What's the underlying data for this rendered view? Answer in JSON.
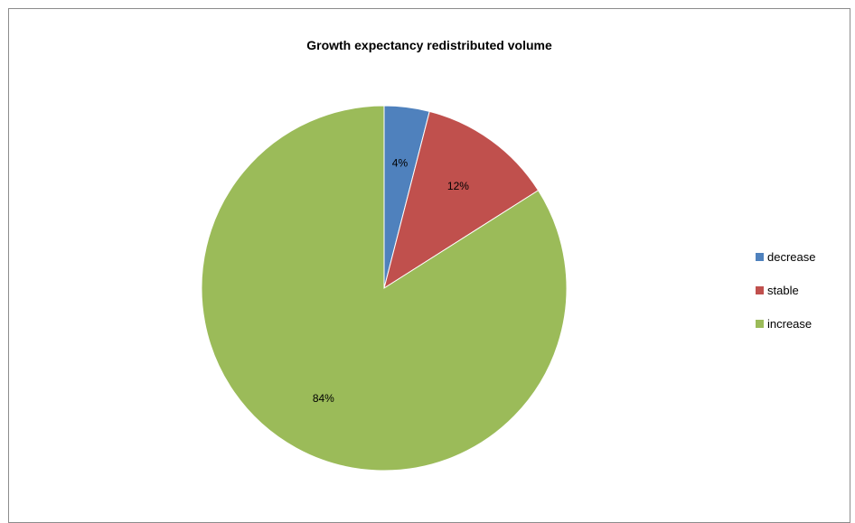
{
  "chart_data": {
    "type": "pie",
    "title": "Growth expectancy redistributed volume",
    "categories": [
      "decrease",
      "stable",
      "increase"
    ],
    "values": [
      4,
      12,
      84
    ],
    "labels": [
      "4%",
      "12%",
      "84%"
    ],
    "colors": [
      "#4f81bd",
      "#c0504d",
      "#9bbb59"
    ],
    "legend_position": "right"
  }
}
